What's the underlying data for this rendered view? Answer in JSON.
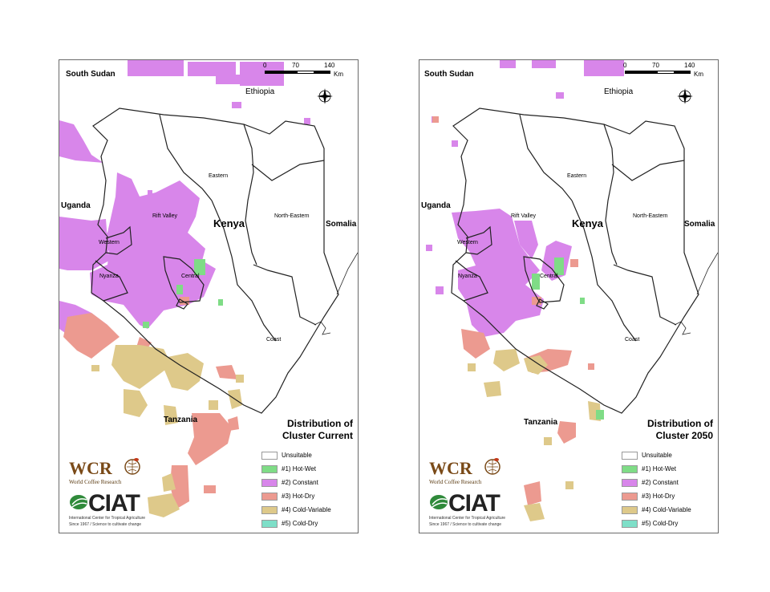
{
  "colors": {
    "unsuitable": "#ffffff",
    "hot_wet": "#7fdc86",
    "constant": "#d886ea",
    "hot_dry": "#ec9a90",
    "cold_variable": "#dec98a",
    "cold_dry": "#7edfc8",
    "border": "#222222",
    "frame": "#6a6a6a"
  },
  "scale": {
    "ticks": [
      "0",
      "70",
      "140"
    ],
    "unit": "Km"
  },
  "compass": {
    "icon": "north-arrow-compass-icon"
  },
  "places": {
    "south_sudan": "South Sudan",
    "ethiopia": "Ethiopia",
    "uganda": "Uganda",
    "somalia": "Somalia",
    "kenya": "Kenya",
    "tanzania": "Tanzania",
    "eastern": "Eastern",
    "rift_valley": "Rift Valley",
    "north_eastern": "North-Eastern",
    "western": "Western",
    "nyanza": "Nyanza",
    "central": "Central",
    "coast": "Coast"
  },
  "maps": [
    {
      "legend_title_line1": "Distribution of",
      "legend_title_line2": "Cluster Current"
    },
    {
      "legend_title_line1": "Distribution of",
      "legend_title_line2": "Cluster 2050"
    }
  ],
  "legend_items": [
    {
      "label": "Unsuitable",
      "color": "#ffffff"
    },
    {
      "label": "#1) Hot-Wet",
      "color": "#7fdc86"
    },
    {
      "label": "#2) Constant",
      "color": "#d886ea"
    },
    {
      "label": "#3) Hot-Dry",
      "color": "#ec9a90"
    },
    {
      "label": "#4) Cold-Variable",
      "color": "#dec98a"
    },
    {
      "label": "#5) Cold-Dry",
      "color": "#7edfc8"
    }
  ],
  "logos": {
    "wcr_text": "WCR",
    "wcr_subtitle": "World Coffee Research",
    "ciat_text": "CIAT",
    "ciat_subtitle1": "International Center for Tropical Agriculture",
    "ciat_subtitle2": "Since 1967 / Science to cultivate change"
  }
}
